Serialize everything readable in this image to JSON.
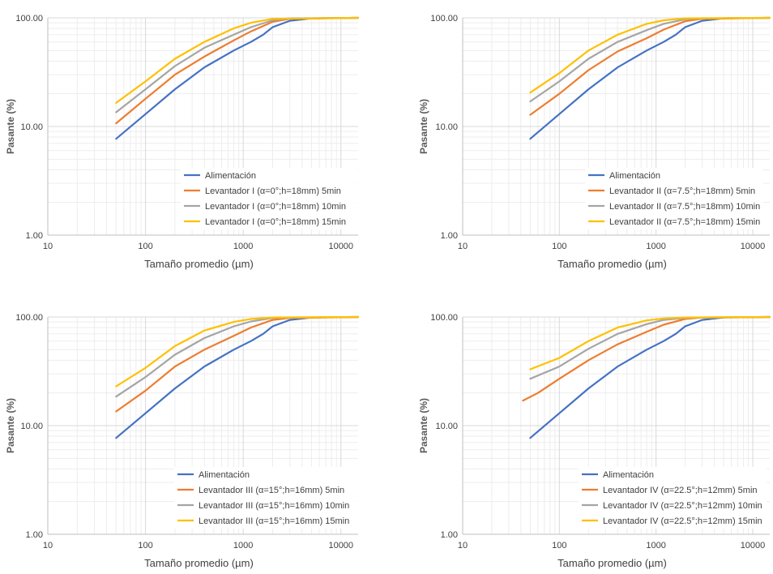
{
  "colors": {
    "feed": "#4472c4",
    "t5": "#ed7d31",
    "t10": "#a5a5a5",
    "t15": "#ffc000",
    "grid_major": "#d9d9d9",
    "grid_minor": "#ededed",
    "axis": "#bfbfbf"
  },
  "chart_data": [
    {
      "type": "line",
      "scale": "log-log",
      "xlabel": "Tamaño promedio (µm)",
      "ylabel": "Pasante (%)",
      "xlim": [
        10,
        15000
      ],
      "ylim": [
        1,
        100
      ],
      "xticks": [
        "10",
        "100",
        "1000",
        "10000"
      ],
      "yticks": [
        "1.00",
        "10.00",
        "100.00"
      ],
      "legend_position": "bottom-right",
      "series": [
        {
          "name": "Alimentación",
          "color_key": "feed",
          "x": [
            50,
            100,
            200,
            400,
            800,
            1200,
            1600,
            2000,
            3000,
            5000,
            15000
          ],
          "y": [
            7.7,
            13.0,
            22,
            35,
            50,
            60,
            70,
            82,
            94,
            99,
            100
          ]
        },
        {
          "name": "Levantador I (α=0°;h=18mm) 5min",
          "color_key": "t5",
          "x": [
            50,
            100,
            200,
            400,
            800,
            1200,
            2000,
            3000,
            15000
          ],
          "y": [
            10.7,
            18,
            30,
            44,
            62,
            75,
            92,
            98,
            100
          ]
        },
        {
          "name": "Levantador I (α=0°;h=18mm) 10min",
          "color_key": "t10",
          "x": [
            50,
            100,
            200,
            400,
            800,
            1200,
            2000,
            3000,
            15000
          ],
          "y": [
            13.5,
            22,
            36,
            53,
            70,
            82,
            95,
            99,
            100
          ]
        },
        {
          "name": "Levantador I (α=0°;h=18mm) 15min",
          "color_key": "t15",
          "x": [
            50,
            100,
            200,
            400,
            800,
            1200,
            2000,
            15000
          ],
          "y": [
            16.5,
            26,
            42,
            60,
            80,
            90,
            98,
            100
          ]
        }
      ]
    },
    {
      "type": "line",
      "scale": "log-log",
      "xlabel": "Tamaño promedio (µm)",
      "ylabel": "Pasante (%)",
      "xlim": [
        10,
        15000
      ],
      "ylim": [
        1,
        100
      ],
      "xticks": [
        "10",
        "100",
        "1000",
        "10000"
      ],
      "yticks": [
        "1.00",
        "10.00",
        "100.00"
      ],
      "legend_position": "bottom-right",
      "series": [
        {
          "name": "Alimentación",
          "color_key": "feed",
          "x": [
            50,
            100,
            200,
            400,
            800,
            1200,
            1600,
            2000,
            3000,
            5000,
            15000
          ],
          "y": [
            7.7,
            13.0,
            22,
            35,
            50,
            60,
            70,
            82,
            94,
            99,
            100
          ]
        },
        {
          "name": "Levantador II (α=7.5°;h=18mm) 5min",
          "color_key": "t5",
          "x": [
            50,
            100,
            200,
            400,
            800,
            1200,
            2000,
            3000,
            15000
          ],
          "y": [
            12.8,
            20,
            33,
            49,
            65,
            78,
            93,
            98,
            100
          ]
        },
        {
          "name": "Levantador II (α=7.5°;h=18mm) 10min",
          "color_key": "t10",
          "x": [
            50,
            100,
            200,
            400,
            800,
            1200,
            2000,
            3000,
            15000
          ],
          "y": [
            17,
            26,
            42,
            60,
            77,
            88,
            97,
            99,
            100
          ]
        },
        {
          "name": "Levantador II (α=7.5°;h=18mm) 15min",
          "color_key": "t15",
          "x": [
            50,
            100,
            200,
            400,
            800,
            1200,
            2000,
            15000
          ],
          "y": [
            20.5,
            31,
            50,
            70,
            88,
            95,
            99,
            100
          ]
        }
      ]
    },
    {
      "type": "line",
      "scale": "log-log",
      "xlabel": "Tamaño promedio (µm)",
      "ylabel": "Pasante (%)",
      "xlim": [
        10,
        15000
      ],
      "ylim": [
        1,
        100
      ],
      "xticks": [
        "10",
        "100",
        "1000",
        "10000"
      ],
      "yticks": [
        "1.00",
        "10.00",
        "100.00"
      ],
      "legend_position": "bottom-right",
      "series": [
        {
          "name": "Alimentación",
          "color_key": "feed",
          "x": [
            50,
            100,
            200,
            400,
            800,
            1200,
            1600,
            2000,
            3000,
            5000,
            15000
          ],
          "y": [
            7.7,
            13.0,
            22,
            35,
            50,
            60,
            70,
            82,
            94,
            99,
            100
          ]
        },
        {
          "name": "Levantador III (α=15°;h=16mm) 5min",
          "color_key": "t5",
          "x": [
            50,
            100,
            200,
            400,
            800,
            1200,
            2000,
            3000,
            15000
          ],
          "y": [
            13.5,
            21,
            35,
            50,
            67,
            80,
            94,
            98,
            100
          ]
        },
        {
          "name": "Levantador III (α=15°;h=16mm) 10min",
          "color_key": "t10",
          "x": [
            50,
            100,
            200,
            400,
            800,
            1200,
            2000,
            3000,
            15000
          ],
          "y": [
            18.5,
            28,
            45,
            64,
            82,
            91,
            98,
            99,
            100
          ]
        },
        {
          "name": "Levantador III (α=15°;h=16mm) 15min",
          "color_key": "t15",
          "x": [
            50,
            100,
            200,
            400,
            800,
            1200,
            2000,
            15000
          ],
          "y": [
            23,
            34,
            54,
            75,
            90,
            96,
            99,
            100
          ]
        }
      ]
    },
    {
      "type": "line",
      "scale": "log-log",
      "xlabel": "Tamaño promedio (µm)",
      "ylabel": "Pasante (%)",
      "xlim": [
        10,
        15000
      ],
      "ylim": [
        1,
        100
      ],
      "xticks": [
        "10",
        "100",
        "1000",
        "10000"
      ],
      "yticks": [
        "1.00",
        "10.00",
        "100.00"
      ],
      "legend_position": "bottom-right",
      "series": [
        {
          "name": "Alimentación",
          "color_key": "feed",
          "x": [
            50,
            100,
            200,
            400,
            800,
            1200,
            1600,
            2000,
            3000,
            5000,
            15000
          ],
          "y": [
            7.7,
            13.0,
            22,
            35,
            50,
            60,
            70,
            82,
            94,
            99,
            100
          ]
        },
        {
          "name": "Levantador IV (α=22.5°;h=12mm) 5min",
          "color_key": "t5",
          "x": [
            42,
            60,
            100,
            200,
            400,
            800,
            1200,
            2000,
            3000,
            15000
          ],
          "y": [
            17,
            20,
            27,
            40,
            56,
            73,
            85,
            96,
            99,
            100
          ]
        },
        {
          "name": "Levantador IV (α=22.5°;h=12mm) 10min",
          "color_key": "t10",
          "x": [
            50,
            100,
            200,
            400,
            800,
            1200,
            2000,
            3000,
            15000
          ],
          "y": [
            27,
            35,
            51,
            70,
            86,
            94,
            98,
            99,
            100
          ]
        },
        {
          "name": "Levantador IV (α=22.5°;h=12mm) 15min",
          "color_key": "t15",
          "x": [
            50,
            100,
            200,
            400,
            800,
            1200,
            2000,
            15000
          ],
          "y": [
            33,
            42,
            60,
            80,
            93,
            97,
            99,
            100
          ]
        }
      ]
    }
  ]
}
